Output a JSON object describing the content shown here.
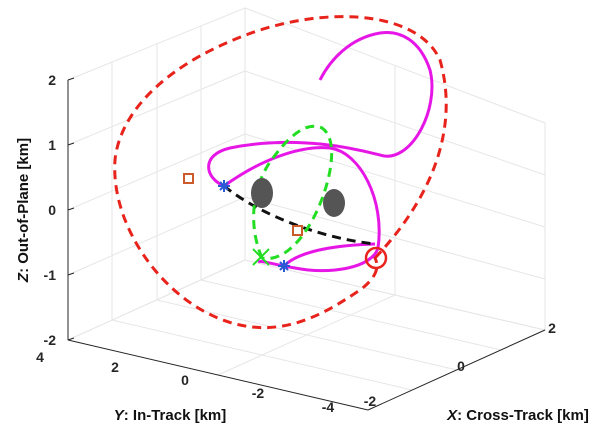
{
  "chart_data": {
    "type": "line",
    "title": "",
    "axes": {
      "x": {
        "label_var": "X",
        "label_text": ": Cross-Track [km]",
        "ticks": [
          -2,
          0,
          2
        ],
        "range": [
          -2,
          2
        ]
      },
      "y": {
        "label_var": "Y",
        "label_text": ": In-Track [km]",
        "ticks": [
          4,
          2,
          0,
          -2,
          -4
        ],
        "range": [
          -4,
          4
        ]
      },
      "z": {
        "label_var": "Z",
        "label_text": ": Out-of-Plane [km]",
        "ticks": [
          2,
          1,
          0,
          -1,
          -2
        ],
        "range": [
          -2,
          2
        ]
      }
    },
    "grid": true,
    "legend": "none",
    "colors": {
      "red_dashed": "#e8231c",
      "magenta_solid": "#e617e6",
      "black_dashed": "#111111",
      "green_dashed": "#22dd22",
      "blue_star": "#2b59d6",
      "orange_square": "#cc5a2a",
      "gray_ellipsoid": "#555555"
    },
    "series": [
      {
        "style": "red dashed",
        "description_points": "large outer relative orbit loop, approx X -0.6..2.0 km, Y -4..2.5 km, Z -1.9..2.0 km"
      },
      {
        "style": "magenta solid",
        "description_points": "transfer trajectory loop starting near blue star markers, passing through upper right Z ~1.7 km to red circle"
      },
      {
        "style": "black dashed",
        "description_points": "short arc from blue star to red circle region, Z ~0.5 km"
      },
      {
        "style": "green dashed",
        "description_points": "small inner ellipse, Z approx -0.9..1.3 km"
      }
    ],
    "markers": [
      {
        "type": "blue-star",
        "count": 2
      },
      {
        "type": "orange-square",
        "count": 2
      },
      {
        "type": "green-x",
        "count": 1
      },
      {
        "type": "red-circle",
        "count": 1
      },
      {
        "type": "gray-ellipsoid",
        "count": 2
      }
    ]
  }
}
